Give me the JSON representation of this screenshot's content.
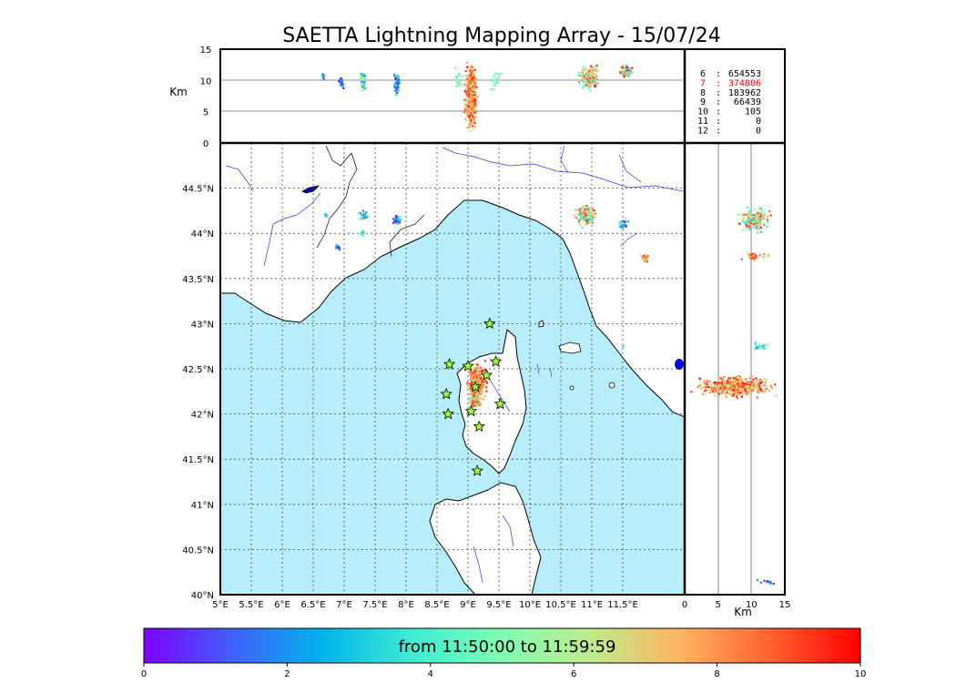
{
  "chart_data": {
    "type": "scatter",
    "title": "SAETTA Lightning Mapping Array - 15/07/24",
    "time_window": "from 11:50:00 to 11:59:59",
    "colorbar": {
      "min": 0,
      "max": 10,
      "ticks": [
        "0",
        "2",
        "4",
        "6",
        "8",
        "10"
      ],
      "colormap": "rainbow",
      "colors": [
        "#7f00ff",
        "#3f61fa",
        "#00b4eb",
        "#40ecd4",
        "#7ffeb3",
        "#bfeb8b",
        "#ffb360",
        "#ff6130",
        "#ff0000"
      ]
    },
    "map": {
      "lon_range": [
        5,
        12.5
      ],
      "lat_range": [
        40,
        45
      ],
      "lon_ticks": [
        "5°E",
        "5.5°E",
        "6°E",
        "6.5°E",
        "7°E",
        "7.5°E",
        "8°E",
        "8.5°E",
        "9°E",
        "9.5°E",
        "10°E",
        "10.5°E",
        "11°E",
        "11.5°E"
      ],
      "lat_ticks": [
        "40°N",
        "40.5°N",
        "41°N",
        "41.5°N",
        "42°N",
        "42.5°N",
        "43°N",
        "43.5°N",
        "44°N",
        "44.5°N"
      ],
      "grid": true,
      "sea_color": "#b8eefc",
      "land_color": "#ffffff",
      "stations": [
        {
          "lon": 9.35,
          "lat": 43.0
        },
        {
          "lon": 8.7,
          "lat": 42.55
        },
        {
          "lon": 9.0,
          "lat": 42.53
        },
        {
          "lon": 9.45,
          "lat": 42.58
        },
        {
          "lon": 9.3,
          "lat": 42.43
        },
        {
          "lon": 9.12,
          "lat": 42.3
        },
        {
          "lon": 8.65,
          "lat": 42.22
        },
        {
          "lon": 9.52,
          "lat": 42.11
        },
        {
          "lon": 8.68,
          "lat": 42.0
        },
        {
          "lon": 9.05,
          "lat": 42.03
        },
        {
          "lon": 9.18,
          "lat": 41.86
        },
        {
          "lon": 9.15,
          "lat": 41.37
        }
      ],
      "clusters": [
        {
          "lon": 9.15,
          "lat": 42.35,
          "dlon": 0.2,
          "dlat": 0.25,
          "n": 300,
          "c": [
            6,
            10
          ]
        },
        {
          "lon": 9.1,
          "lat": 42.15,
          "dlon": 0.12,
          "dlat": 0.12,
          "n": 120,
          "c": [
            4,
            10
          ]
        },
        {
          "lon": 10.9,
          "lat": 44.2,
          "dlon": 0.2,
          "dlat": 0.14,
          "n": 180,
          "c": [
            3,
            10
          ]
        },
        {
          "lon": 11.5,
          "lat": 44.1,
          "dlon": 0.1,
          "dlat": 0.08,
          "n": 40,
          "c": [
            0,
            6
          ]
        },
        {
          "lon": 11.85,
          "lat": 43.72,
          "dlon": 0.08,
          "dlat": 0.05,
          "n": 30,
          "c": [
            5,
            10
          ]
        },
        {
          "lon": 7.3,
          "lat": 44.2,
          "dlon": 0.1,
          "dlat": 0.06,
          "n": 40,
          "c": [
            1,
            7
          ]
        },
        {
          "lon": 7.85,
          "lat": 44.15,
          "dlon": 0.1,
          "dlat": 0.06,
          "n": 40,
          "c": [
            0,
            4
          ]
        },
        {
          "lon": 6.9,
          "lat": 43.85,
          "dlon": 0.05,
          "dlat": 0.04,
          "n": 15,
          "c": [
            0,
            3
          ]
        },
        {
          "lon": 7.3,
          "lat": 44.0,
          "dlon": 0.04,
          "dlat": 0.04,
          "n": 10,
          "c": [
            3,
            5
          ]
        },
        {
          "lon": 6.7,
          "lat": 44.2,
          "dlon": 0.03,
          "dlat": 0.03,
          "n": 8,
          "c": [
            2,
            4
          ]
        },
        {
          "lon": 11.5,
          "lat": 42.75,
          "dlon": 0.02,
          "dlat": 0.03,
          "n": 8,
          "c": [
            3,
            5
          ]
        }
      ]
    },
    "top_panel": {
      "y_label": "Km",
      "y_range": [
        0,
        15
      ],
      "y_ticks": [
        "0",
        "5",
        "10",
        "15"
      ],
      "reference_lines_km": [
        5,
        10
      ],
      "clusters": [
        {
          "lon": 9.05,
          "alt": 7.5,
          "dlon": 0.12,
          "dalt": 6.5,
          "n": 400,
          "c": [
            6,
            10
          ]
        },
        {
          "lon": 10.95,
          "alt": 10.5,
          "dlon": 0.2,
          "dalt": 2.5,
          "n": 160,
          "c": [
            3,
            10
          ]
        },
        {
          "lon": 11.55,
          "alt": 11.5,
          "dlon": 0.15,
          "dalt": 1.5,
          "n": 70,
          "c": [
            1,
            10
          ]
        },
        {
          "lon": 7.3,
          "alt": 10.0,
          "dlon": 0.06,
          "dalt": 1.8,
          "n": 60,
          "c": [
            1,
            7
          ]
        },
        {
          "lon": 7.85,
          "alt": 9.5,
          "dlon": 0.06,
          "dalt": 2.0,
          "n": 60,
          "c": [
            0,
            4
          ]
        },
        {
          "lon": 6.95,
          "alt": 9.5,
          "dlon": 0.05,
          "dalt": 1.5,
          "n": 25,
          "c": [
            0,
            3
          ]
        },
        {
          "lon": 6.65,
          "alt": 10.5,
          "dlon": 0.05,
          "dalt": 1.0,
          "n": 12,
          "c": [
            0,
            5
          ]
        },
        {
          "lon": 8.85,
          "alt": 10.0,
          "dlon": 0.1,
          "dalt": 2.5,
          "n": 20,
          "c": [
            4,
            6
          ]
        },
        {
          "lon": 9.45,
          "alt": 10.0,
          "dlon": 0.12,
          "dalt": 2.5,
          "n": 20,
          "c": [
            4,
            6
          ]
        }
      ]
    },
    "right_panel": {
      "x_label": "Km",
      "x_range": [
        0,
        15
      ],
      "x_ticks": [
        "0",
        "5",
        "10",
        "15"
      ],
      "reference_lines_km": [
        5,
        10
      ],
      "clusters": [
        {
          "alt": 7.5,
          "lat": 42.3,
          "dalt": 7.0,
          "dlat": 0.14,
          "n": 450,
          "c": [
            6,
            10
          ]
        },
        {
          "alt": 10.5,
          "lat": 44.15,
          "dalt": 3.0,
          "dlat": 0.18,
          "n": 160,
          "c": [
            3,
            10
          ]
        },
        {
          "alt": 10.5,
          "lat": 43.75,
          "dalt": 2.5,
          "dlat": 0.06,
          "n": 30,
          "c": [
            5,
            10
          ]
        },
        {
          "alt": 11.5,
          "lat": 42.75,
          "dalt": 2.0,
          "dlat": 0.06,
          "n": 25,
          "c": [
            2,
            6
          ]
        },
        {
          "alt": 12.5,
          "lat": 40.15,
          "dalt": 2.0,
          "dlat": 0.04,
          "n": 10,
          "c": [
            0,
            3
          ]
        }
      ]
    },
    "stats": [
      {
        "label": "6",
        "value": "654553",
        "highlight": false
      },
      {
        "label": "7",
        "value": "374806",
        "highlight": true
      },
      {
        "label": "8",
        "value": "183962",
        "highlight": false
      },
      {
        "label": "9",
        "value": "66439",
        "highlight": false
      },
      {
        "label": "10",
        "value": "105",
        "highlight": false
      },
      {
        "label": "11",
        "value": "0",
        "highlight": false
      },
      {
        "label": "12",
        "value": "0",
        "highlight": false
      }
    ]
  }
}
